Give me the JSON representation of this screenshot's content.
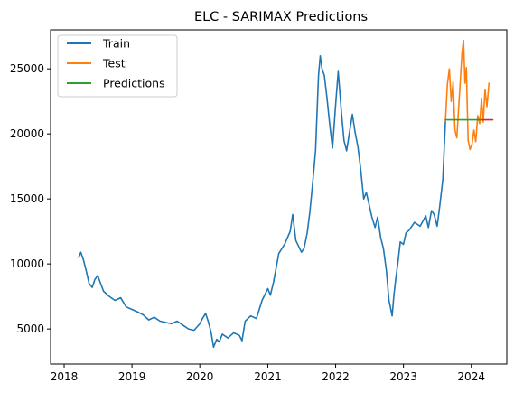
{
  "chart_data": {
    "type": "line",
    "title": "ELC - SARIMAX Predictions",
    "xlabel": "",
    "ylabel": "",
    "x_ticks": [
      "2018",
      "2019",
      "2020",
      "2021",
      "2022",
      "2023",
      "2024"
    ],
    "y_ticks": [
      "5000",
      "10000",
      "15000",
      "20000",
      "25000"
    ],
    "xlim": [
      "2017-10-20",
      "2024-07-10"
    ],
    "ylim": [
      2300,
      28000
    ],
    "grid": false,
    "legend_position": "top-left",
    "colors": {
      "train": "#1f77b4",
      "test": "#ff7f0e",
      "predictions": "#2ca02c",
      "forecast_extension": "#d62728"
    },
    "series": [
      {
        "name": "Train",
        "x": [
          "2018-03-20",
          "2018-04-01",
          "2018-04-15",
          "2018-05-01",
          "2018-05-15",
          "2018-06-01",
          "2018-06-15",
          "2018-07-01",
          "2018-08-01",
          "2018-09-01",
          "2018-10-01",
          "2018-11-01",
          "2018-12-01",
          "2019-01-01",
          "2019-02-01",
          "2019-03-01",
          "2019-04-01",
          "2019-05-01",
          "2019-06-01",
          "2019-07-01",
          "2019-08-01",
          "2019-09-01",
          "2019-10-01",
          "2019-11-01",
          "2019-12-01",
          "2020-01-01",
          "2020-01-15",
          "2020-02-01",
          "2020-02-15",
          "2020-03-01",
          "2020-03-15",
          "2020-04-01",
          "2020-04-15",
          "2020-05-01",
          "2020-06-01",
          "2020-07-01",
          "2020-08-01",
          "2020-08-15",
          "2020-09-01",
          "2020-10-01",
          "2020-11-01",
          "2020-12-01",
          "2021-01-01",
          "2021-01-15",
          "2021-02-01",
          "2021-03-01",
          "2021-04-01",
          "2021-05-01",
          "2021-05-15",
          "2021-06-01",
          "2021-07-01",
          "2021-07-15",
          "2021-08-01",
          "2021-08-15",
          "2021-09-01",
          "2021-09-15",
          "2021-10-01",
          "2021-10-10",
          "2021-10-20",
          "2021-11-01",
          "2021-11-15",
          "2021-12-01",
          "2021-12-15",
          "2022-01-01",
          "2022-01-15",
          "2022-02-01",
          "2022-02-15",
          "2022-03-01",
          "2022-03-15",
          "2022-04-01",
          "2022-04-15",
          "2022-05-01",
          "2022-05-15",
          "2022-06-01",
          "2022-06-15",
          "2022-07-01",
          "2022-07-15",
          "2022-08-01",
          "2022-08-15",
          "2022-09-01",
          "2022-09-15",
          "2022-10-01",
          "2022-10-15",
          "2022-11-01",
          "2022-11-10",
          "2022-11-20",
          "2022-12-01",
          "2022-12-15",
          "2023-01-01",
          "2023-01-15",
          "2023-02-01",
          "2023-03-01",
          "2023-04-01",
          "2023-05-01",
          "2023-05-15",
          "2023-06-01",
          "2023-06-15",
          "2023-07-01",
          "2023-07-15",
          "2023-08-01",
          "2023-08-15"
        ],
        "values": [
          10500,
          10900,
          10300,
          9400,
          8500,
          8200,
          8800,
          9100,
          7900,
          7500,
          7200,
          7400,
          6700,
          6500,
          6300,
          6100,
          5700,
          5900,
          5600,
          5500,
          5400,
          5600,
          5300,
          5000,
          4900,
          5400,
          5800,
          6200,
          5600,
          4800,
          3600,
          4200,
          4000,
          4600,
          4300,
          4700,
          4500,
          4100,
          5600,
          6000,
          5800,
          7200,
          8100,
          7600,
          8600,
          10800,
          11500,
          12500,
          13800,
          11800,
          10900,
          11200,
          12400,
          14000,
          16500,
          18700,
          24500,
          26000,
          25000,
          24500,
          22800,
          20600,
          18900,
          22200,
          24800,
          21700,
          19500,
          18700,
          20000,
          21500,
          20200,
          19000,
          17400,
          15000,
          15500,
          14500,
          13600,
          12800,
          13600,
          12000,
          11200,
          9500,
          7200,
          6000,
          7500,
          8800,
          10000,
          11700,
          11500,
          12400,
          12600,
          13200,
          12900,
          13700,
          12800,
          14100,
          13800,
          12900,
          14400,
          16500,
          21000
        ]
      },
      {
        "name": "Test",
        "x": [
          "2023-08-15",
          "2023-08-25",
          "2023-09-05",
          "2023-09-15",
          "2023-09-25",
          "2023-10-05",
          "2023-10-15",
          "2023-10-25",
          "2023-11-05",
          "2023-11-12",
          "2023-11-20",
          "2023-11-28",
          "2023-12-05",
          "2023-12-15",
          "2023-12-25",
          "2024-01-05",
          "2024-01-15",
          "2024-01-25",
          "2024-02-05",
          "2024-02-15",
          "2024-02-25",
          "2024-03-05",
          "2024-03-15",
          "2024-03-25",
          "2024-04-05"
        ],
        "values": [
          21000,
          23800,
          25000,
          22500,
          24000,
          20300,
          19700,
          22000,
          24600,
          26200,
          27200,
          23900,
          25100,
          19500,
          18800,
          19200,
          20300,
          19400,
          21400,
          20800,
          22700,
          20900,
          23400,
          22100,
          23900
        ]
      },
      {
        "name": "Predictions",
        "x": [
          "2023-08-15",
          "2024-02-25"
        ],
        "values": [
          21080,
          21080
        ]
      },
      {
        "name": "",
        "x": [
          "2024-02-25",
          "2024-04-25"
        ],
        "values": [
          21080,
          21080
        ]
      }
    ]
  }
}
